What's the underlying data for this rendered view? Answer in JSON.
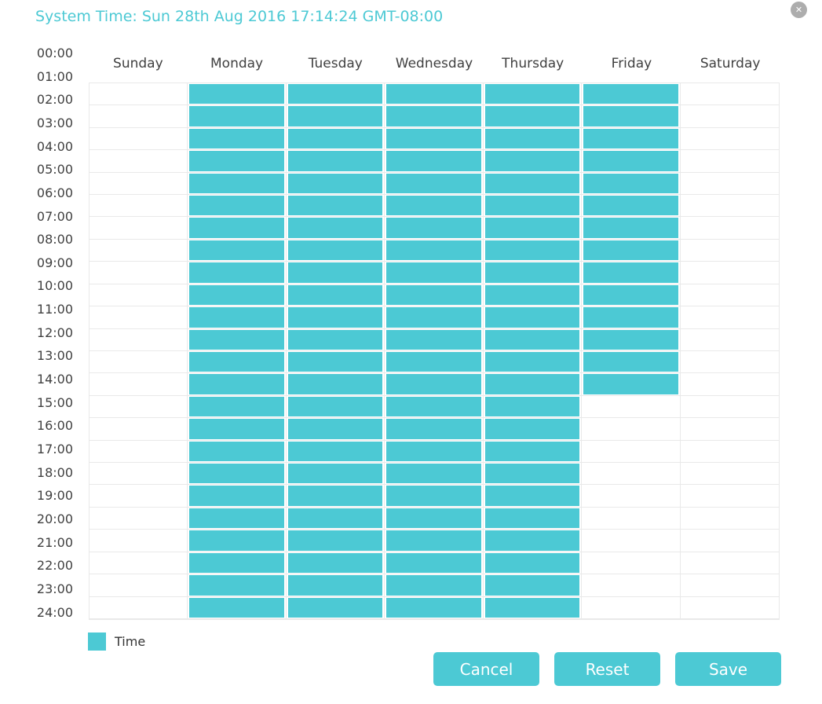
{
  "dialog": {
    "title": "System Time: Sun 28th Aug 2016 17:14:24 GMT-08:00",
    "close_glyph": "✕"
  },
  "schedule": {
    "day_headers": [
      "Sunday",
      "Monday",
      "Tuesday",
      "Wednesday",
      "Thursday",
      "Friday",
      "Saturday"
    ],
    "hour_labels": [
      "00:00",
      "01:00",
      "02:00",
      "03:00",
      "04:00",
      "05:00",
      "06:00",
      "07:00",
      "08:00",
      "09:00",
      "10:00",
      "11:00",
      "12:00",
      "13:00",
      "14:00",
      "15:00",
      "16:00",
      "17:00",
      "18:00",
      "19:00",
      "20:00",
      "21:00",
      "22:00",
      "23:00",
      "24:00"
    ],
    "rows_per_column": 24,
    "filled_rows_per_day": [
      0,
      24,
      24,
      24,
      24,
      14,
      0
    ]
  },
  "legend": {
    "label": "Time"
  },
  "buttons": [
    {
      "name": "cancel",
      "label": "Cancel"
    },
    {
      "name": "reset",
      "label": "Reset"
    },
    {
      "name": "save",
      "label": "Save"
    }
  ],
  "colors": {
    "accent": "#4CC9D4",
    "grid_line": "#E9E9E9",
    "label_text": "#404040",
    "close_button_bg": "#ADADAD"
  }
}
